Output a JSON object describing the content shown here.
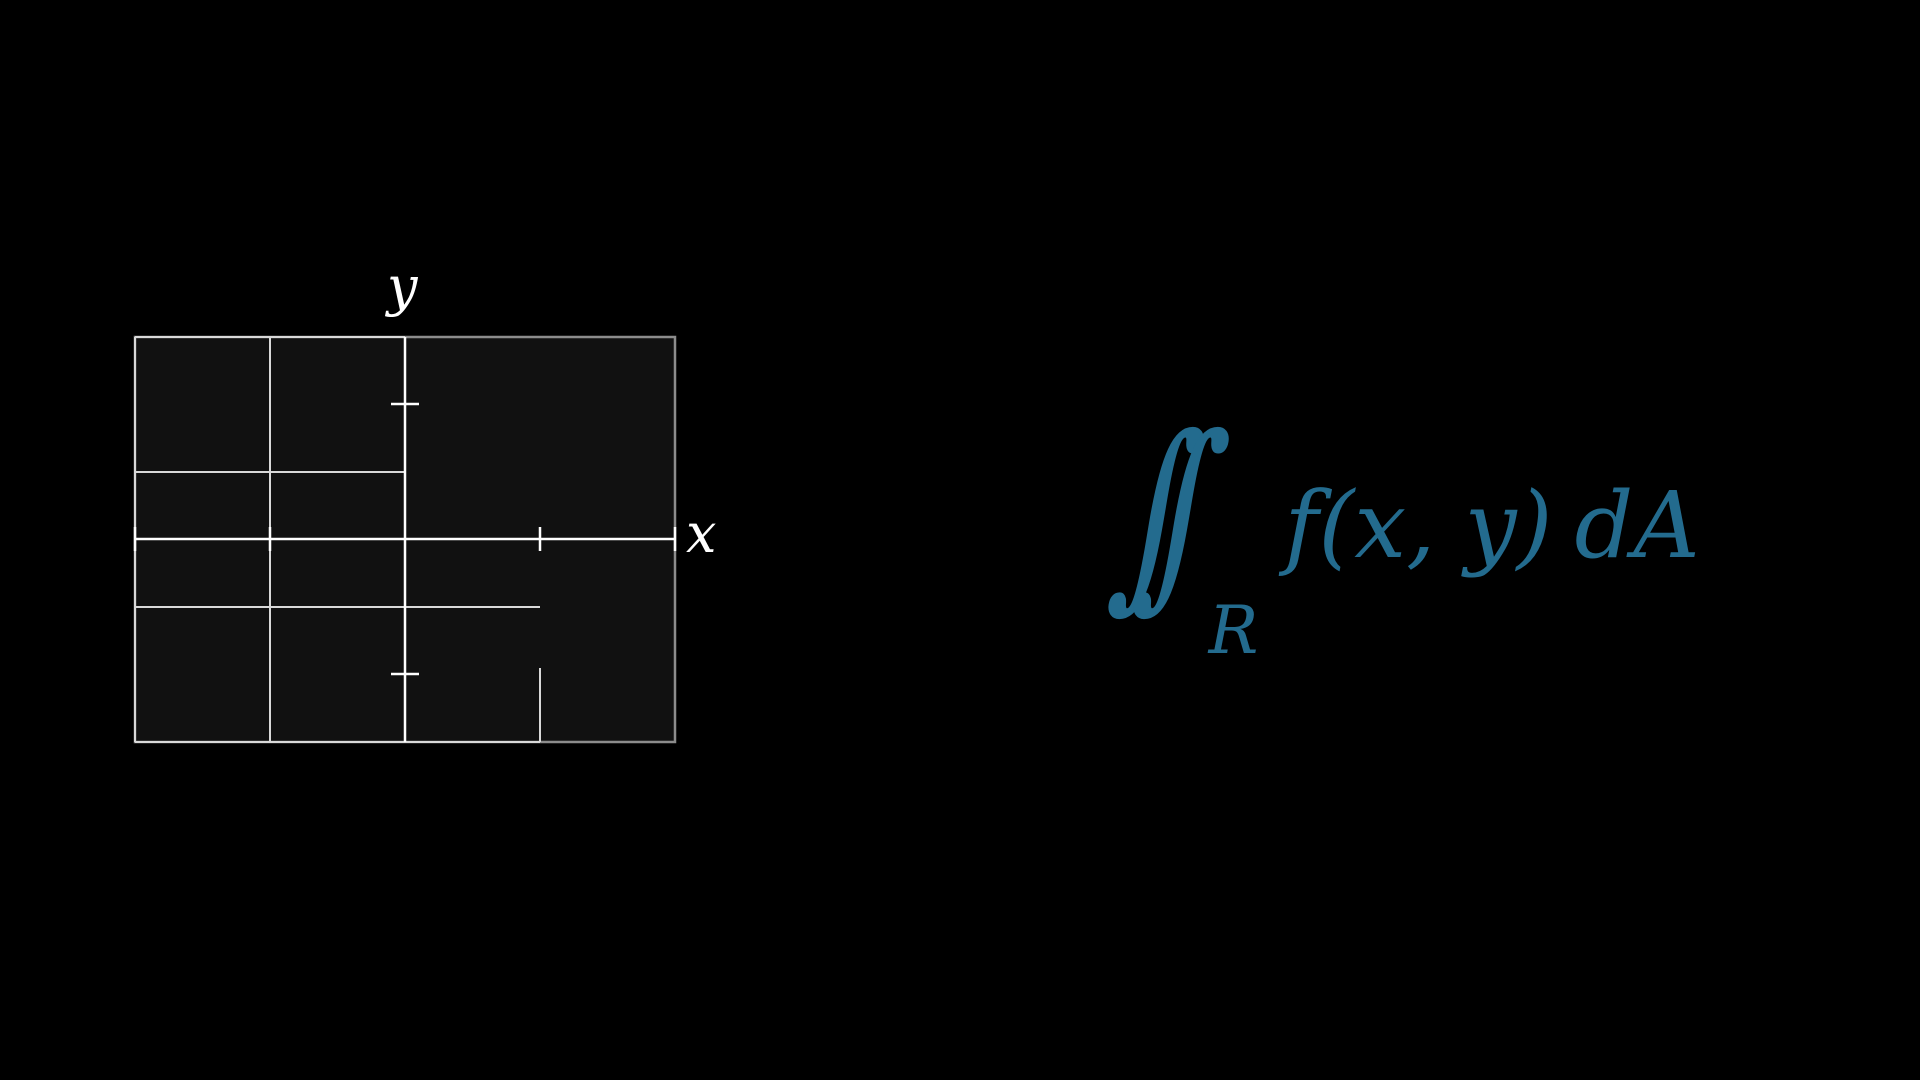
{
  "diagram": {
    "x_axis_label": "x",
    "y_axis_label": "y",
    "colors": {
      "background": "#000000",
      "region_fill": "#111111",
      "grid_line": "#d9d9d9",
      "axis_line": "#ffffff",
      "outer_border": "#8c8c8c"
    }
  },
  "formula": {
    "integral_symbol": "∫",
    "region": "R",
    "integrand": "f(x, y)",
    "differential": "dA",
    "color": "#236b8e"
  }
}
